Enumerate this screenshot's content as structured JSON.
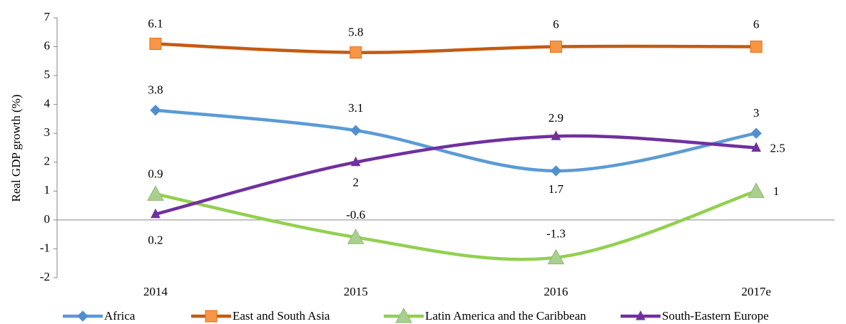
{
  "chart_data": {
    "type": "line",
    "y_label": "Real GDP growth (%)",
    "categories": [
      "2014",
      "2015",
      "2016",
      "2017e"
    ],
    "series": [
      {
        "name": "Africa",
        "color": "#5b9bd5",
        "marker": "diamond",
        "values": [
          3.8,
          3.1,
          1.7,
          3
        ]
      },
      {
        "name": "East and South Asia",
        "color": "#c55a11",
        "marker": "square",
        "values": [
          6.1,
          5.8,
          6,
          6
        ]
      },
      {
        "name": "Latin America and the Caribbean",
        "color": "#92d050",
        "marker": "triangle",
        "values": [
          0.9,
          -0.6,
          -1.3,
          1
        ]
      },
      {
        "name": "South-Eastern Europe",
        "color": "#7030a0",
        "marker": "small-triangle",
        "values": [
          0.2,
          2,
          2.9,
          2.5
        ]
      }
    ],
    "ylim": [
      -2,
      7
    ],
    "yticks": [
      -2,
      -1,
      0,
      1,
      2,
      3,
      4,
      5,
      6,
      7
    ],
    "smooth": true
  }
}
